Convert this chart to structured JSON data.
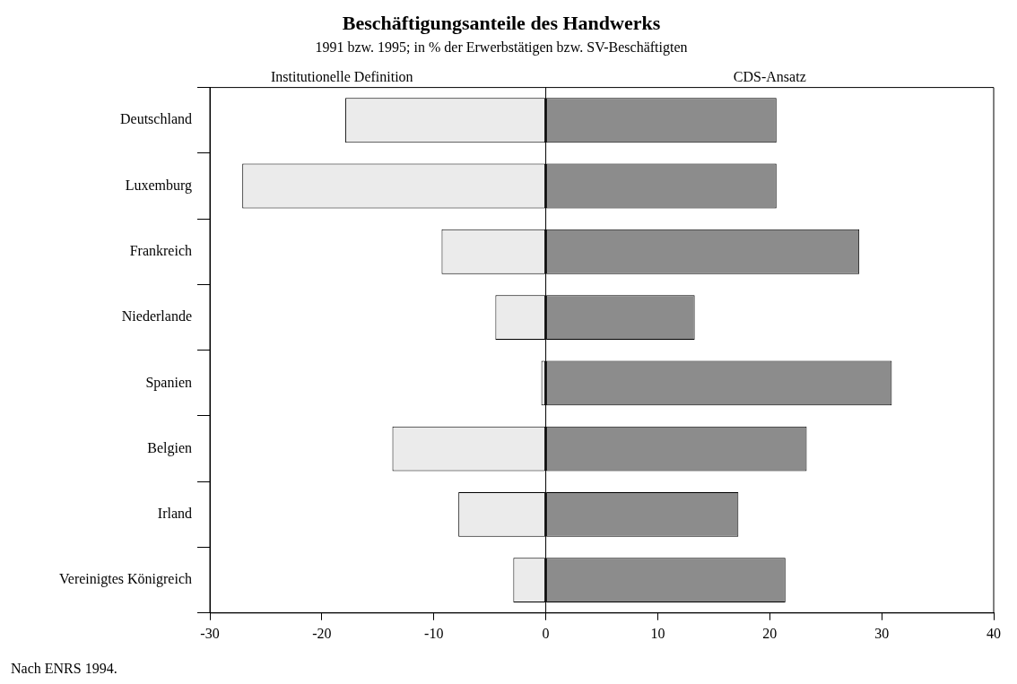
{
  "chart_data": {
    "type": "bar",
    "orientation": "horizontal",
    "stacked": true,
    "title": "Beschäftigungsanteile des Handwerks",
    "subtitle": "1991 bzw. 1995; in % der Erwerbstätigen bzw. SV-Beschäftigten",
    "categories": [
      "Deutschland",
      "Luxemburg",
      "Frankreich",
      "Niederlande",
      "Spanien",
      "Belgien",
      "Irland",
      "Vereinigtes Königreich"
    ],
    "series": [
      {
        "name": "Institutionelle Definition",
        "color": "#ebebeb",
        "values": [
          -17.9,
          -27.1,
          -9.3,
          -4.5,
          -0.4,
          -13.7,
          -7.8,
          -2.9
        ]
      },
      {
        "name": "CDS-Ansatz",
        "color": "#8c8c8c",
        "values": [
          20.6,
          20.6,
          28.0,
          13.3,
          30.9,
          23.3,
          17.2,
          21.4
        ]
      }
    ],
    "ref_lines": [
      {
        "axis": "x",
        "value": 0
      }
    ],
    "xlim": [
      -30,
      40
    ],
    "xticks": [
      -30,
      -20,
      -10,
      0,
      10,
      20,
      30,
      40
    ],
    "grid": false,
    "legend": false,
    "annotations": [
      "Nach ENRS 1994."
    ]
  }
}
